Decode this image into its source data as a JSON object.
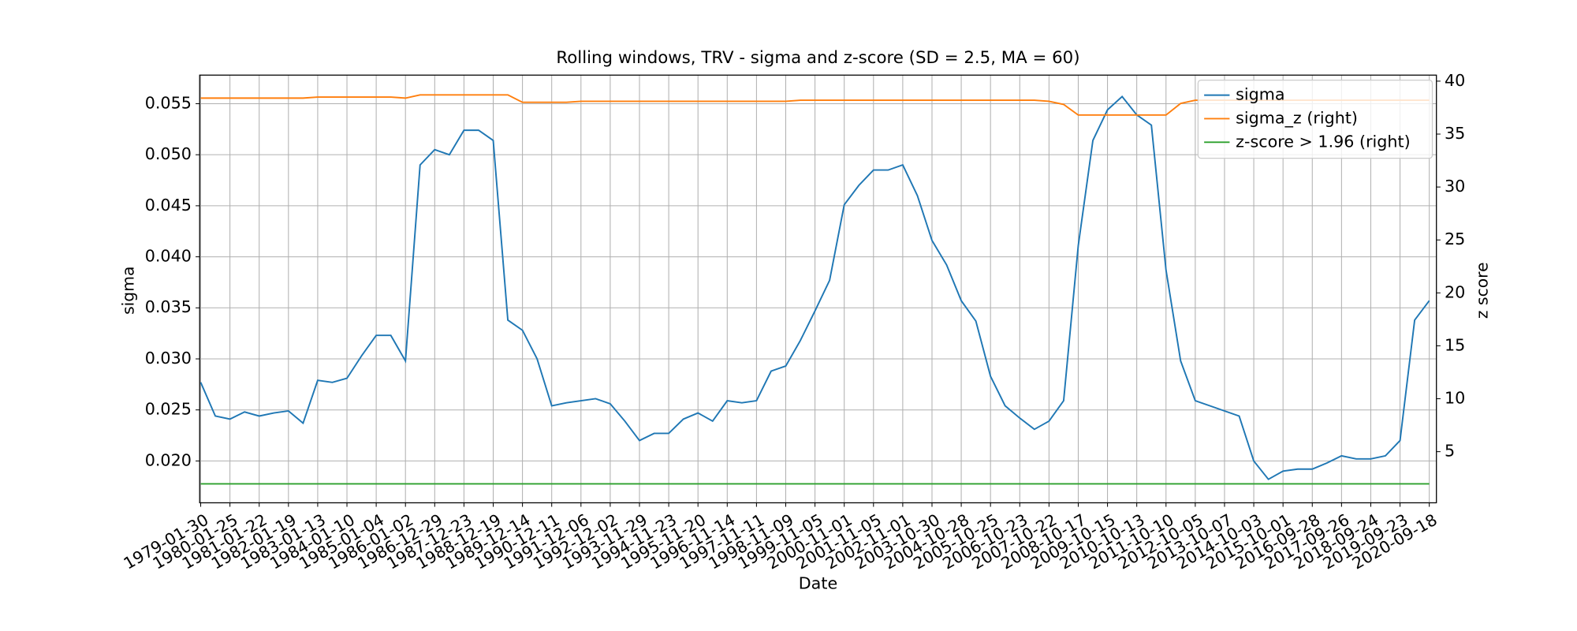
{
  "chart_data": {
    "type": "line",
    "title": "Rolling windows, TRV - sigma and z-score (SD = 2.5, MA = 60)",
    "xlabel": "Date",
    "ylabel": "sigma",
    "y2label": "z score",
    "grid": true,
    "legend": "upper right",
    "x": [
      "1979-01-30",
      null,
      "1980-01-25",
      null,
      "1981-01-22",
      null,
      "1982-01-19",
      null,
      "1983-01-13",
      null,
      "1984-01-10",
      null,
      "1985-01-04",
      null,
      "1986-01-02",
      null,
      "1986-12-29",
      null,
      "1987-12-23",
      null,
      "1988-12-19",
      null,
      "1989-12-14",
      null,
      "1990-12-11",
      null,
      "1991-12-06",
      null,
      "1992-12-02",
      null,
      "1993-11-29",
      null,
      "1994-11-23",
      null,
      "1995-11-20",
      null,
      "1996-11-14",
      null,
      "1997-11-11",
      null,
      "1998-11-09",
      null,
      "1999-11-05",
      null,
      "2000-11-01",
      null,
      "2001-11-05",
      null,
      "2002-11-01",
      null,
      "2003-10-30",
      null,
      "2004-10-28",
      null,
      "2005-10-25",
      null,
      "2006-10-23",
      null,
      "2007-10-22",
      null,
      "2008-10-17",
      null,
      "2009-10-15",
      null,
      "2010-10-13",
      null,
      "2011-10-10",
      null,
      "2012-10-05",
      null,
      "2013-10-07",
      null,
      "2014-10-03",
      null,
      "2015-10-01",
      null,
      "2016-09-28",
      null,
      "2017-09-26",
      null,
      "2018-09-24",
      null,
      "2019-09-23",
      null,
      "2020-09-18"
    ],
    "ylim": [
      0.0159,
      0.0578
    ],
    "yticks": [
      {
        "value": 0.02,
        "label": "0.020"
      },
      {
        "value": 0.025,
        "label": "0.025"
      },
      {
        "value": 0.03,
        "label": "0.030"
      },
      {
        "value": 0.035,
        "label": "0.035"
      },
      {
        "value": 0.04,
        "label": "0.040"
      },
      {
        "value": 0.045,
        "label": "0.045"
      },
      {
        "value": 0.05,
        "label": "0.050"
      },
      {
        "value": 0.055,
        "label": "0.055"
      }
    ],
    "y2lim": [
      0.17,
      40.57
    ],
    "y2ticks": [
      5,
      10,
      15,
      20,
      25,
      30,
      35,
      40
    ],
    "series": [
      {
        "name": "sigma",
        "color": "#1f77b4",
        "values": [
          0.0277,
          0.0244,
          0.0241,
          0.0248,
          0.0244,
          0.0247,
          0.0249,
          0.0237,
          0.0279,
          0.0277,
          0.0281,
          0.0303,
          0.0323,
          0.0323,
          0.0298,
          0.049,
          0.0505,
          0.05,
          0.0524,
          0.0524,
          0.0514,
          0.0338,
          0.0328,
          0.03,
          0.0254,
          0.0257,
          0.0259,
          0.0261,
          0.0256,
          0.0239,
          0.022,
          0.0227,
          0.0227,
          0.0241,
          0.0247,
          0.0239,
          0.0259,
          0.0257,
          0.0259,
          0.0288,
          0.0293,
          0.0318,
          0.0347,
          0.0377,
          0.0451,
          0.047,
          0.0485,
          0.0485,
          0.049,
          0.046,
          0.0416,
          0.0392,
          0.0357,
          0.0337,
          0.0283,
          0.0254,
          0.0242,
          0.0231,
          0.0239,
          0.0259,
          0.0411,
          0.0514,
          0.0544,
          0.0557,
          0.0539,
          0.0529,
          0.0387,
          0.0298,
          0.0259,
          0.0254,
          0.0249,
          0.0244,
          0.02,
          0.0182,
          0.019,
          0.0192,
          0.0192,
          0.0198,
          0.0205,
          0.0202,
          0.0202,
          0.0205,
          0.022,
          0.0338,
          0.0357
        ]
      },
      {
        "name": "sigma_z (right)",
        "color": "#ff7f0e",
        "axis": "y2",
        "values": [
          38.4,
          38.4,
          38.4,
          38.4,
          38.4,
          38.4,
          38.4,
          38.4,
          38.5,
          38.5,
          38.5,
          38.5,
          38.5,
          38.5,
          38.4,
          38.7,
          38.7,
          38.7,
          38.7,
          38.7,
          38.7,
          38.7,
          38.0,
          38.0,
          38.0,
          38.0,
          38.1,
          38.1,
          38.1,
          38.1,
          38.1,
          38.1,
          38.1,
          38.1,
          38.1,
          38.1,
          38.1,
          38.1,
          38.1,
          38.1,
          38.1,
          38.2,
          38.2,
          38.2,
          38.2,
          38.2,
          38.2,
          38.2,
          38.2,
          38.2,
          38.2,
          38.2,
          38.2,
          38.2,
          38.2,
          38.2,
          38.2,
          38.2,
          38.1,
          37.8,
          36.8,
          36.8,
          36.8,
          36.8,
          36.8,
          36.8,
          36.8,
          37.9,
          38.2,
          38.2,
          38.2,
          38.2,
          38.2,
          38.2,
          38.2,
          38.2,
          38.2,
          38.2,
          38.2,
          38.2,
          38.2,
          38.2,
          38.2,
          38.2,
          38.2
        ]
      },
      {
        "name": "z-score > 1.96 (right)",
        "color": "#2ca02c",
        "axis": "y2",
        "values": [
          1.96,
          1.96,
          1.96,
          1.96,
          1.96,
          1.96,
          1.96,
          1.96,
          1.96,
          1.96,
          1.96,
          1.96,
          1.96,
          1.96,
          1.96,
          1.96,
          1.96,
          1.96,
          1.96,
          1.96,
          1.96,
          1.96,
          1.96,
          1.96,
          1.96,
          1.96,
          1.96,
          1.96,
          1.96,
          1.96,
          1.96,
          1.96,
          1.96,
          1.96,
          1.96,
          1.96,
          1.96,
          1.96,
          1.96,
          1.96,
          1.96,
          1.96,
          1.96,
          1.96,
          1.96,
          1.96,
          1.96,
          1.96,
          1.96,
          1.96,
          1.96,
          1.96,
          1.96,
          1.96,
          1.96,
          1.96,
          1.96,
          1.96,
          1.96,
          1.96,
          1.96,
          1.96,
          1.96,
          1.96,
          1.96,
          1.96,
          1.96,
          1.96,
          1.96,
          1.96,
          1.96,
          1.96,
          1.96,
          1.96,
          1.96,
          1.96,
          1.96,
          1.96,
          1.96,
          1.96,
          1.96,
          1.96,
          1.96,
          1.96,
          1.96
        ]
      }
    ]
  }
}
